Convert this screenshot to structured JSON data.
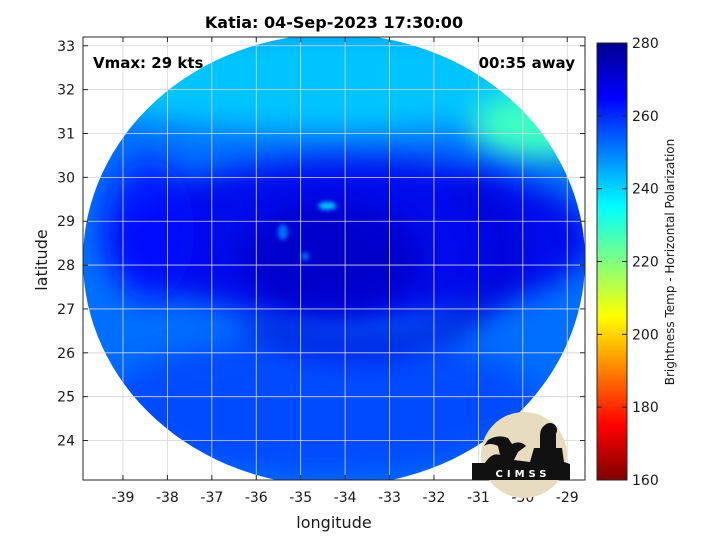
{
  "chart_data": {
    "type": "heatmap",
    "title": "Katia: 04-Sep-2023 17:30:00",
    "xlabel": "longitude",
    "ylabel": "latitude",
    "xlim": [
      -39.9,
      -28.6
    ],
    "ylim": [
      23.1,
      33.2
    ],
    "xticks": [
      -39,
      -38,
      -37,
      -36,
      -35,
      -34,
      -33,
      -32,
      -31,
      -30,
      -29
    ],
    "yticks": [
      24,
      25,
      26,
      27,
      28,
      29,
      30,
      31,
      32,
      33
    ],
    "grid": true,
    "annotations": {
      "vmax": "Vmax: 29 kts",
      "time_away": "00:35 away"
    },
    "colorbar": {
      "label": "Brightness Temp - Horizontal Polarization",
      "range": [
        160,
        280
      ],
      "ticks": [
        160,
        180,
        200,
        220,
        240,
        260,
        280
      ],
      "colormap": [
        "#7f0000",
        "#ff0000",
        "#ff8000",
        "#ffff00",
        "#80ff80",
        "#00ffff",
        "#0080ff",
        "#0000ff",
        "#00008f"
      ]
    },
    "swath": {
      "center_lon": -34.3,
      "center_lat": 28.15,
      "extent_lon": [
        -39.8,
        -28.6
      ],
      "extent_lat": [
        23.1,
        33.2
      ],
      "fields": [
        {
          "feature": "background",
          "temp": 252
        },
        {
          "feature": "north-edge",
          "temp": 242
        },
        {
          "feature": "northeast-corner",
          "temp": 228
        },
        {
          "feature": "central-dense-band",
          "temp": 268
        },
        {
          "feature": "core",
          "temp": 272
        },
        {
          "feature": "west-band",
          "temp": 264
        },
        {
          "feature": "south-region",
          "temp": 258
        }
      ]
    }
  },
  "logo": {
    "text": "CIMSS"
  }
}
